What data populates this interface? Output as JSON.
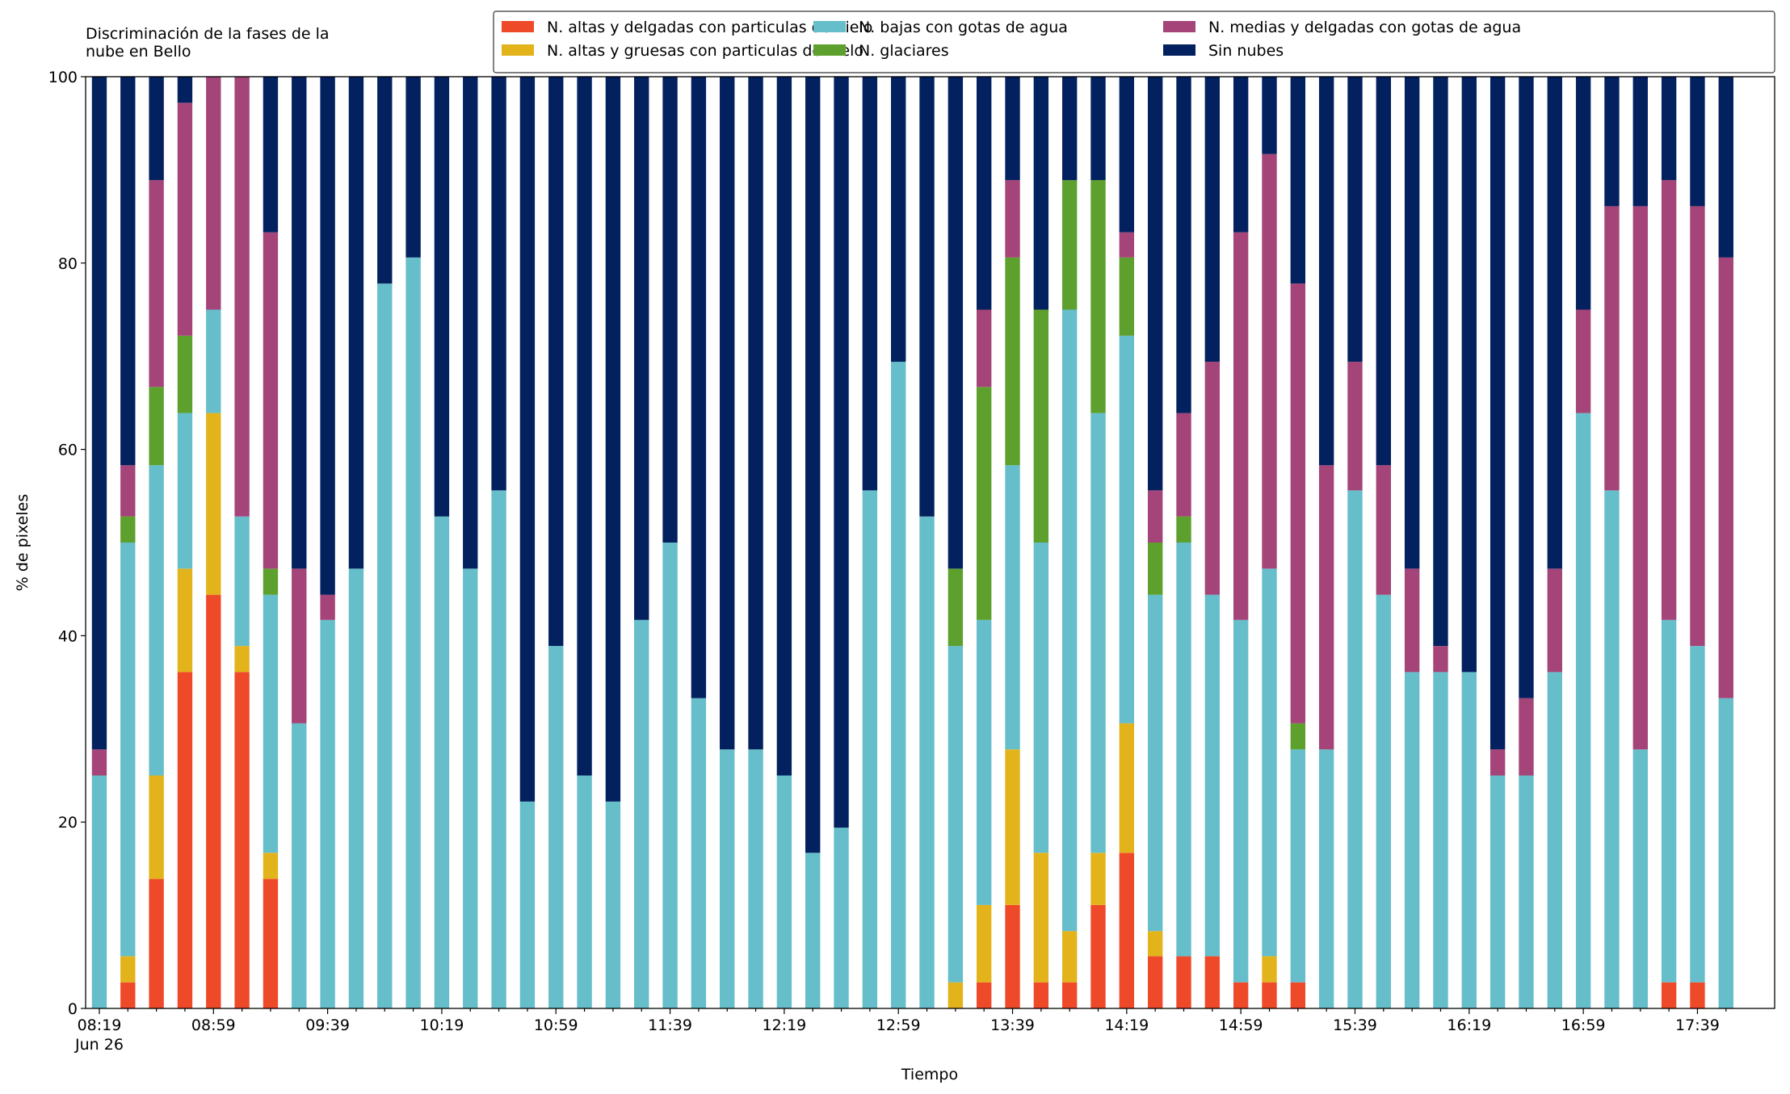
{
  "chart_data": {
    "type": "stacked_bar",
    "title": "Discriminación de la fases de la\nnube en Bello",
    "xlabel": "Tiempo",
    "ylabel": "% de pixeles",
    "categories": [
      "08:19\nJun 26",
      null,
      null,
      null,
      "08:59",
      null,
      null,
      null,
      "09:39",
      null,
      null,
      null,
      "10:19",
      null,
      null,
      null,
      "10:59",
      null,
      null,
      null,
      "11:39",
      null,
      null,
      null,
      "12:19",
      null,
      null,
      null,
      "12:59",
      null,
      null,
      null,
      "13:39",
      null,
      null,
      null,
      "14:19",
      null,
      null,
      null,
      "14:59",
      null,
      null,
      null,
      "15:39",
      null,
      null,
      null,
      "16:19",
      null,
      null,
      null,
      "16:59",
      null,
      null,
      null,
      "17:39",
      null
    ],
    "ylim": [
      0,
      100
    ],
    "yticks": [
      0,
      20,
      40,
      60,
      80,
      100
    ],
    "legend": "upper right",
    "series": [
      {
        "name": "N. altas y delgadas con particulas de hielo",
        "color": "#ee4a2a",
        "values": [
          0,
          2.8,
          13.9,
          36.1,
          44.4,
          36.1,
          13.9,
          0,
          0,
          0,
          0,
          0,
          0,
          0,
          0,
          0,
          0,
          0,
          0,
          0,
          0,
          0,
          0,
          0,
          0,
          0,
          0,
          0,
          0,
          0,
          0,
          2.8,
          11.1,
          2.8,
          2.8,
          11.1,
          16.7,
          5.6,
          5.6,
          5.6,
          2.8,
          2.8,
          2.8,
          0,
          0,
          0,
          0,
          0,
          0,
          0,
          0,
          0,
          0,
          0,
          0,
          2.8,
          2.8,
          0
        ]
      },
      {
        "name": "N. altas y gruesas con particulas de hielo",
        "color": "#e3b31b",
        "values": [
          0,
          2.8,
          11.1,
          11.1,
          19.5,
          2.8,
          2.8,
          0,
          0,
          0,
          0,
          0,
          0,
          0,
          0,
          0,
          0,
          0,
          0,
          0,
          0,
          0,
          0,
          0,
          0,
          0,
          0,
          0,
          0,
          0,
          2.8,
          8.3,
          16.7,
          13.9,
          5.5,
          5.6,
          13.9,
          2.7,
          0,
          0,
          0,
          2.8,
          0,
          0,
          0,
          0,
          0,
          0,
          0,
          0,
          0,
          0,
          0,
          0,
          0,
          0,
          0,
          0
        ]
      },
      {
        "name": "N. bajas con gotas de agua",
        "color": "#65bec9",
        "values": [
          25,
          44.4,
          33.3,
          16.7,
          11.1,
          13.9,
          27.7,
          30.6,
          41.7,
          47.2,
          77.8,
          80.6,
          52.8,
          47.2,
          55.6,
          22.2,
          38.9,
          25,
          22.2,
          41.7,
          50,
          33.3,
          27.8,
          27.8,
          25,
          16.7,
          19.4,
          55.6,
          69.4,
          52.8,
          36.1,
          30.6,
          30.5,
          33.3,
          66.7,
          47.2,
          41.6,
          36.1,
          44.4,
          38.8,
          38.9,
          41.6,
          25,
          27.8,
          55.6,
          44.4,
          36.1,
          36.1,
          36.1,
          25,
          25,
          36.1,
          63.9,
          55.6,
          27.8,
          38.9,
          36.1,
          33.3
        ]
      },
      {
        "name": "N. glaciares",
        "color": "#5da02e",
        "values": [
          0,
          2.8,
          8.4,
          8.3,
          0,
          0,
          2.8,
          0,
          0,
          0,
          0,
          0,
          0,
          0,
          0,
          0,
          0,
          0,
          0,
          0,
          0,
          0,
          0,
          0,
          0,
          0,
          0,
          0,
          0,
          0,
          8.3,
          25,
          22.3,
          25,
          13.9,
          25,
          8.4,
          5.6,
          2.8,
          0,
          0,
          0,
          2.8,
          0,
          0,
          0,
          0,
          0,
          0,
          0,
          0,
          0,
          0,
          0,
          0,
          0,
          0,
          0
        ]
      },
      {
        "name": "N. medias y delgadas con gotas de agua",
        "color": "#a44478",
        "values": [
          2.8,
          5.5,
          22.2,
          25,
          25,
          47.2,
          36.1,
          16.6,
          2.7,
          0,
          0,
          0,
          0,
          0,
          0,
          0,
          0,
          0,
          0,
          0,
          0,
          0,
          0,
          0,
          0,
          0,
          0,
          0,
          0,
          0,
          0,
          8.3,
          8.3,
          0,
          0,
          0,
          2.7,
          5.6,
          11.1,
          25,
          41.6,
          44.5,
          47.2,
          30.5,
          13.8,
          13.9,
          11.1,
          2.8,
          0,
          2.8,
          8.3,
          11.1,
          11.1,
          30.5,
          58.3,
          47.2,
          47.2,
          47.3
        ]
      },
      {
        "name": "Sin nubes",
        "color": "#03205f",
        "values": [
          72.2,
          41.7,
          11.1,
          2.8,
          0,
          0,
          16.7,
          52.8,
          55.6,
          52.8,
          22.2,
          19.4,
          47.2,
          52.8,
          44.4,
          77.8,
          61.1,
          75,
          77.8,
          58.3,
          50,
          66.7,
          72.2,
          72.2,
          75,
          83.3,
          80.6,
          44.4,
          30.6,
          47.2,
          52.8,
          25,
          11.1,
          25,
          11.1,
          11.1,
          16.7,
          44.4,
          36.1,
          30.6,
          16.7,
          8.3,
          22.2,
          41.7,
          30.6,
          41.7,
          52.8,
          61.1,
          63.9,
          72.2,
          66.7,
          52.8,
          25,
          13.9,
          13.9,
          11.1,
          13.9,
          19.4
        ]
      }
    ]
  }
}
